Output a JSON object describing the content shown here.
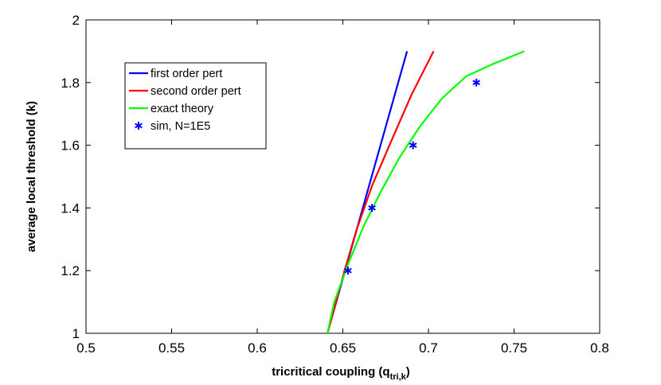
{
  "chart_data": {
    "type": "line",
    "title": "",
    "xlabel": "tricritical coupling (q",
    "xlabel_sub": "tri,k",
    "xlabel_close": ")",
    "ylabel": "average local threshold (k)",
    "xlim": [
      0.5,
      0.8
    ],
    "ylim": [
      1,
      2
    ],
    "xticks": [
      0.5,
      0.55,
      0.6,
      0.65,
      0.7,
      0.75,
      0.8
    ],
    "xtick_labels": [
      "0.5",
      "0.55",
      "0.6",
      "0.65",
      "0.7",
      "0.75",
      "0.8"
    ],
    "yticks": [
      1,
      1.2,
      1.4,
      1.6,
      1.8,
      2
    ],
    "ytick_labels": [
      "1",
      "1.2",
      "1.4",
      "1.6",
      "1.8",
      "2"
    ],
    "grid": false,
    "legend_position": "top-left",
    "series": [
      {
        "name": "first order pert",
        "color": "#0000ff",
        "style": "line",
        "x": [
          0.641,
          0.6875
        ],
        "y": [
          1.0,
          1.9
        ]
      },
      {
        "name": "second order pert",
        "color": "#ff0000",
        "style": "line",
        "x": [
          0.641,
          0.645,
          0.651,
          0.658,
          0.667,
          0.678,
          0.69,
          0.703
        ],
        "y": [
          1.0,
          1.08,
          1.2,
          1.33,
          1.47,
          1.61,
          1.76,
          1.9
        ]
      },
      {
        "name": "exact theory",
        "color": "#00ff00",
        "style": "line",
        "x": [
          0.641,
          0.645,
          0.653,
          0.662,
          0.672,
          0.683,
          0.695,
          0.708,
          0.722,
          0.738,
          0.756
        ],
        "y": [
          1.0,
          1.1,
          1.22,
          1.34,
          1.45,
          1.56,
          1.66,
          1.75,
          1.82,
          1.86,
          1.9
        ]
      },
      {
        "name": "sim, N=1E5",
        "color": "#0000ff",
        "style": "marker-star",
        "x": [
          0.653,
          0.667,
          0.691,
          0.728
        ],
        "y": [
          1.2,
          1.4,
          1.6,
          1.8
        ]
      }
    ]
  }
}
